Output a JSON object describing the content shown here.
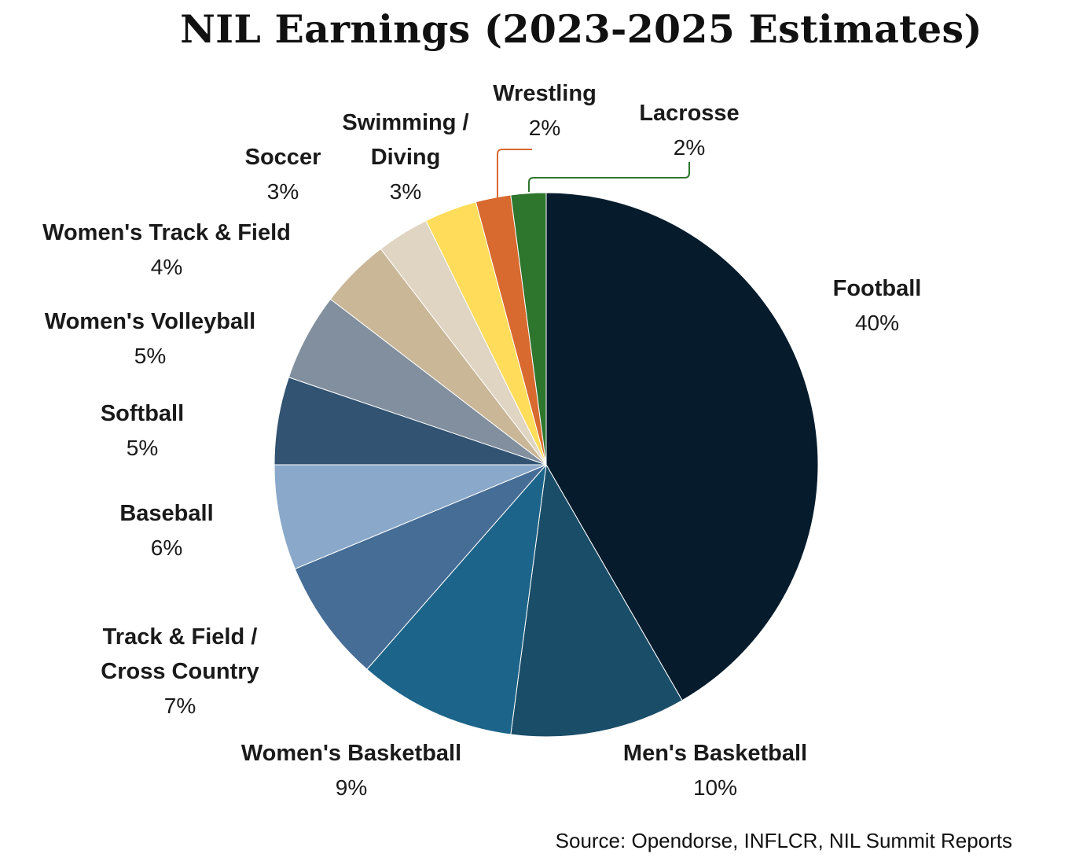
{
  "chart_data": {
    "type": "pie",
    "title": "NIL Earnings (2023-2025 Estimates)",
    "source": "Source: Opendorse, INFLCR, NIL Summit Reports",
    "start_angle_deg": 0,
    "direction": "clockwise",
    "slices": [
      {
        "name": "Football",
        "value": 40,
        "label": "40%",
        "color": "#061C2D"
      },
      {
        "name": "Men's Basketball",
        "value": 10,
        "label": "10%",
        "color": "#1A4D68"
      },
      {
        "name": "Women's Basketball",
        "value": 9,
        "label": "9%",
        "color": "#1C6489"
      },
      {
        "name": "Track & Field / Cross Country",
        "value": 7,
        "label": "7%",
        "color": "#466D96"
      },
      {
        "name": "Baseball",
        "value": 6,
        "label": "6%",
        "color": "#89A8CA"
      },
      {
        "name": "Softball",
        "value": 5,
        "label": "5%",
        "color": "#325372"
      },
      {
        "name": "Women's Volleyball",
        "value": 5,
        "label": "5%",
        "color": "#818F9E"
      },
      {
        "name": "Women's Track & Field",
        "value": 4,
        "label": "4%",
        "color": "#C9B798"
      },
      {
        "name": "Soccer",
        "value": 3,
        "label": "3%",
        "color": "#E0D5C2"
      },
      {
        "name": "Swimming / Diving",
        "value": 3,
        "label": "3%",
        "color": "#FFDD5A"
      },
      {
        "name": "Wrestling",
        "value": 2,
        "label": "2%",
        "color": "#D8692F"
      },
      {
        "name": "Lacrosse",
        "value": 2,
        "label": "2%",
        "color": "#2E752E"
      }
    ]
  }
}
